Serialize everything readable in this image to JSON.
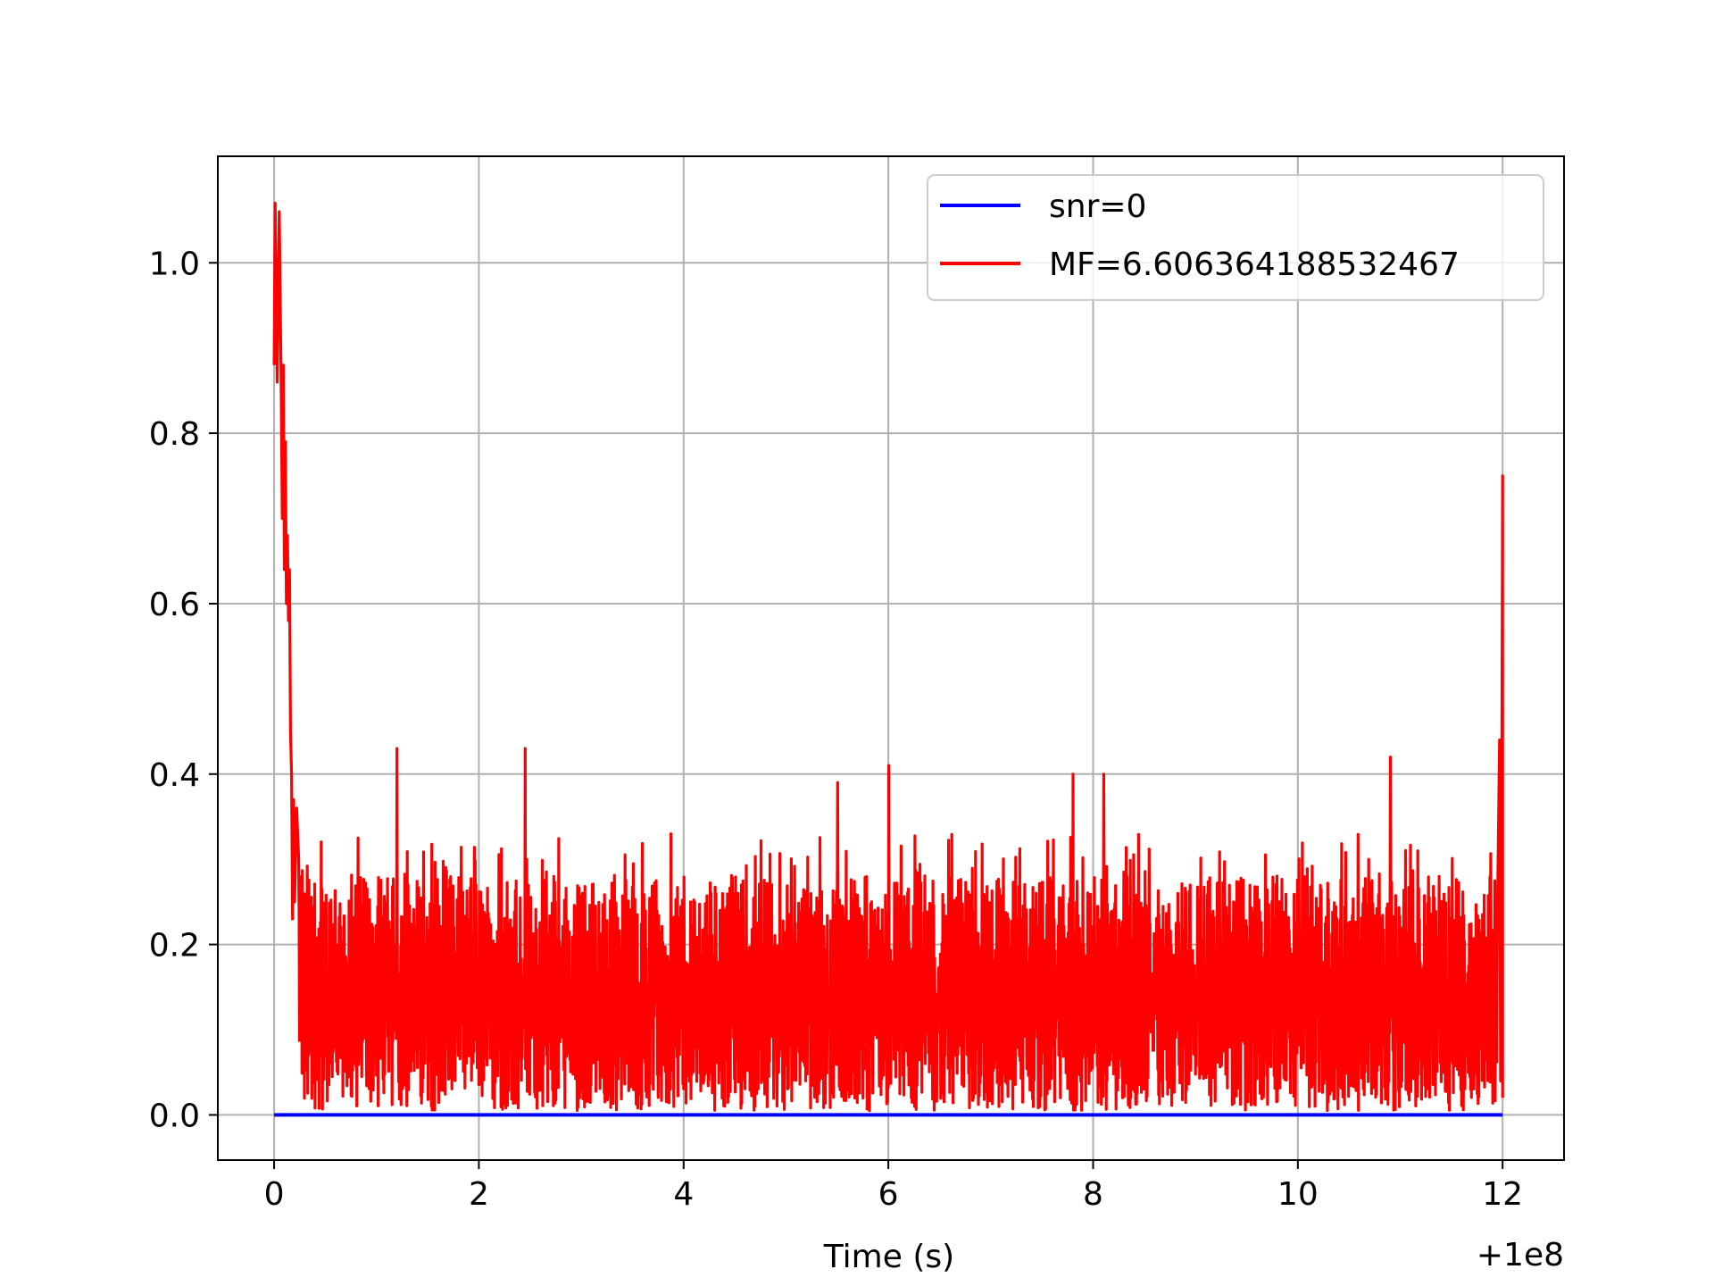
{
  "chart_data": {
    "type": "line",
    "title": "",
    "xlabel": "Time (s)",
    "ylabel": "",
    "x_offset_label": "+1e8",
    "xlim": [
      -0.55,
      12.6
    ],
    "ylim": [
      -0.053,
      1.125
    ],
    "x_ticks": [
      0,
      2,
      4,
      6,
      8,
      10,
      12
    ],
    "x_tick_labels": [
      "0",
      "2",
      "4",
      "6",
      "8",
      "10",
      "12"
    ],
    "y_ticks": [
      0.0,
      0.2,
      0.4,
      0.6,
      0.8,
      1.0
    ],
    "y_tick_labels": [
      "0.0",
      "0.2",
      "0.4",
      "0.6",
      "0.8",
      "1.0"
    ],
    "grid": true,
    "legend_position": "top-right",
    "series": [
      {
        "name": "snr=0",
        "color": "#0000ff",
        "x_range": [
          0,
          12
        ],
        "constant_value": 0.0
      },
      {
        "name": "MF=6.606364188532467",
        "color": "#ff0000",
        "x_range": [
          0,
          12
        ],
        "initial_decay": [
          [
            0.0,
            0.88
          ],
          [
            0.01,
            1.07
          ],
          [
            0.03,
            0.86
          ],
          [
            0.05,
            1.06
          ],
          [
            0.06,
            0.95
          ],
          [
            0.07,
            0.84
          ],
          [
            0.08,
            0.7
          ],
          [
            0.09,
            0.88
          ],
          [
            0.1,
            0.64
          ],
          [
            0.11,
            0.79
          ],
          [
            0.12,
            0.6
          ],
          [
            0.13,
            0.68
          ],
          [
            0.14,
            0.58
          ],
          [
            0.15,
            0.64
          ],
          [
            0.16,
            0.45
          ],
          [
            0.17,
            0.4
          ],
          [
            0.18,
            0.23
          ],
          [
            0.19,
            0.37
          ],
          [
            0.2,
            0.25
          ],
          [
            0.22,
            0.36
          ],
          [
            0.24,
            0.3
          ]
        ],
        "peaks": [
          [
            1.2,
            0.43
          ],
          [
            2.45,
            0.43
          ],
          [
            5.5,
            0.39
          ],
          [
            6.0,
            0.41
          ],
          [
            7.8,
            0.4
          ],
          [
            8.1,
            0.4
          ],
          [
            10.9,
            0.42
          ],
          [
            11.97,
            0.44
          ],
          [
            12.0,
            0.75
          ]
        ],
        "typical_band": [
          0.0,
          0.33
        ]
      }
    ]
  }
}
